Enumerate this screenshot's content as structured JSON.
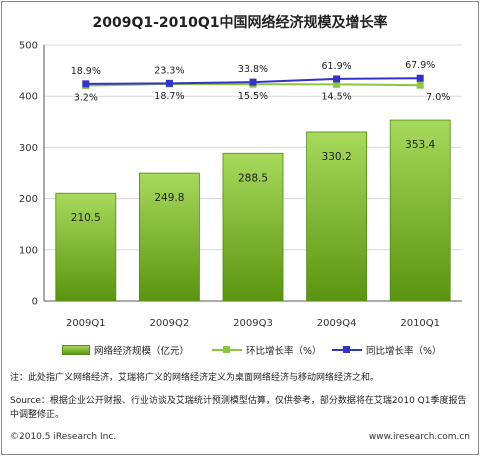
{
  "chart_data": {
    "type": "bar",
    "title": "2009Q1-2010Q1中国网络经济规模及增长率",
    "categories": [
      "2009Q1",
      "2009Q2",
      "2009Q3",
      "2009Q4",
      "2010Q1"
    ],
    "ylim": [
      0,
      500
    ],
    "yticks": [
      0,
      100,
      200,
      300,
      400,
      500
    ],
    "grid": true,
    "series": [
      {
        "name": "网络经济规模（亿元）",
        "type": "bar",
        "values": [
          210.5,
          249.8,
          288.5,
          330.2,
          353.4
        ],
        "labels": [
          "210.5",
          "249.8",
          "288.5",
          "330.2",
          "353.4"
        ]
      },
      {
        "name": "环比增长率（%）",
        "type": "line",
        "values": [
          3.2,
          18.7,
          15.5,
          14.5,
          7.0
        ],
        "labels": [
          "3.2%",
          "18.7%",
          "15.5%",
          "14.5%",
          "7.0%"
        ],
        "color": "#8cc63f"
      },
      {
        "name": "同比增长率（%）",
        "type": "line",
        "values": [
          18.9,
          23.3,
          33.8,
          61.9,
          67.9
        ],
        "labels": [
          "18.9%",
          "23.3%",
          "33.8%",
          "61.9%",
          "67.9%"
        ],
        "color": "#3333cc"
      }
    ],
    "legend_position": "bottom"
  },
  "note": "注：此处指广义网络经济，艾瑞将广义的网络经济定义为桌面网络经济与移动网络经济之和。",
  "source": "Source：根据企业公开财报、行业访谈及艾瑞统计预测模型估算，仅供参考，部分数据将在艾瑞2010 Q1季度报告中调整修正。",
  "footer": {
    "copyright": "©2010.5 iResearch Inc.",
    "website": "www.iresearch.com.cn"
  }
}
